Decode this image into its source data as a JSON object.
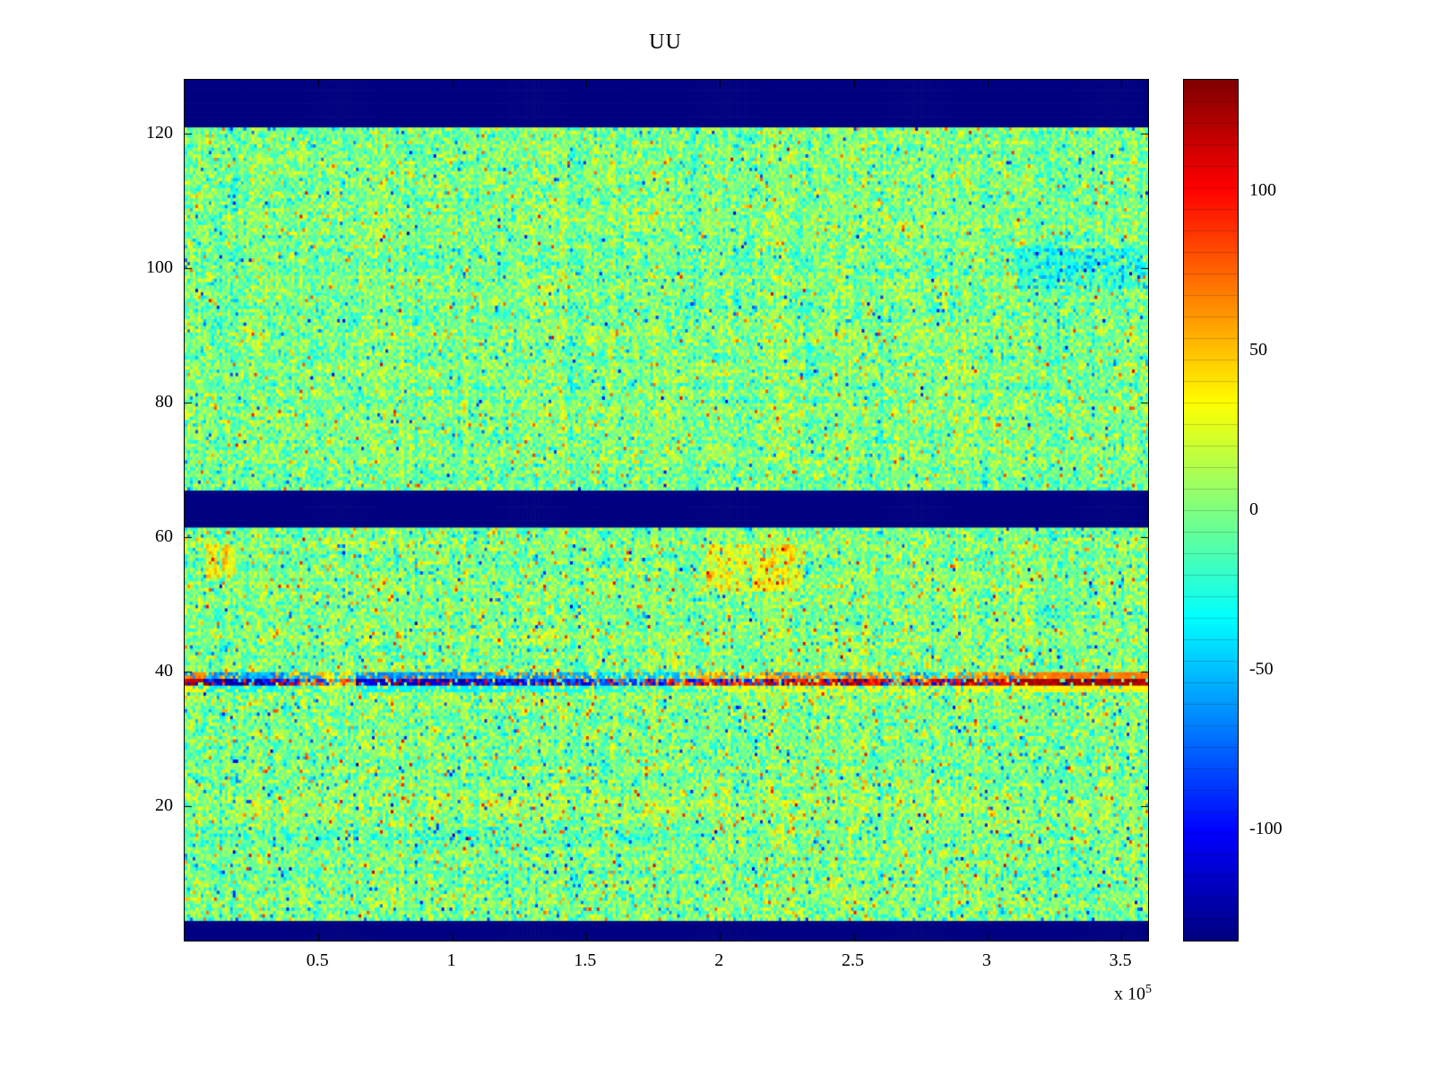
{
  "palette": {
    "background": "#ffffff",
    "axis": "#000000",
    "masked_color": "#000080"
  },
  "chart_data": {
    "type": "heatmap",
    "title": "UU",
    "x_label": "",
    "y_label": "",
    "x_range": [
      0,
      360000
    ],
    "x_tick_values": [
      50000,
      100000,
      150000,
      200000,
      250000,
      300000,
      350000
    ],
    "x_tick_labels": [
      "0.5",
      "1",
      "1.5",
      "2",
      "2.5",
      "3",
      "3.5"
    ],
    "x_offset_label": {
      "text": "x 10",
      "exponent": "5"
    },
    "y_range": [
      0,
      128
    ],
    "y_tick_values": [
      20,
      40,
      60,
      80,
      100,
      120
    ],
    "y_tick_labels": [
      "20",
      "40",
      "60",
      "80",
      "100",
      "120"
    ],
    "color_limits": [
      -135,
      135
    ],
    "colormap": "jet",
    "grid": false,
    "legend": null,
    "colorbar": {
      "tick_values": [
        100,
        50,
        0,
        -50,
        -100
      ],
      "tick_labels": [
        "100",
        "50",
        "0",
        "-50",
        "-100"
      ],
      "segments": 40
    },
    "matrix": {
      "n_rows": 128,
      "n_cols": 360,
      "masked_row_bands": [
        [
          121,
          128.2
        ],
        [
          61.5,
          67.2
        ],
        [
          0,
          3
        ]
      ],
      "masked_value": -135,
      "noise": {
        "seed": 1337,
        "std": 18,
        "row_offset_std": 3,
        "col_offset_std": 5,
        "outlier_prob": 0.04,
        "outlier_amp": [
          38,
          75
        ],
        "lower_region_rows": [
          0,
          61
        ],
        "lower_region_outlier_boost": 1.8
      },
      "stripe": {
        "rows": [
          {
            "row": 38,
            "weight": 1.0
          },
          {
            "row": 39,
            "weight": 0.55
          },
          {
            "row": 37,
            "weight": 0.3
          }
        ],
        "gap_prob": 0.1,
        "segments": [
          {
            "end": 0.02,
            "p_pos": 0.8,
            "amp": [
              100,
              135
            ]
          },
          {
            "end": 0.1,
            "p_pos": 0.25,
            "amp": [
              80,
              135
            ]
          },
          {
            "end": 0.145,
            "p_pos": 0.5,
            "amp": [
              60,
              120
            ]
          },
          {
            "end": 0.175,
            "p_pos": 0.75,
            "amp": [
              40,
              95
            ]
          },
          {
            "end": 0.3,
            "p_pos": 0.12,
            "amp": [
              90,
              135
            ]
          },
          {
            "end": 0.42,
            "p_pos": 0.2,
            "amp": [
              70,
              130
            ]
          },
          {
            "end": 0.53,
            "p_pos": 0.35,
            "amp": [
              50,
              110
            ]
          },
          {
            "end": 0.6,
            "p_pos": 0.7,
            "amp": [
              60,
              120
            ]
          },
          {
            "end": 0.72,
            "p_pos": 0.8,
            "amp": [
              80,
              135
            ]
          },
          {
            "end": 0.8,
            "p_pos": 0.6,
            "amp": [
              60,
              125
            ]
          },
          {
            "end": 0.87,
            "p_pos": 0.75,
            "amp": [
              80,
              135
            ]
          },
          {
            "end": 1.0,
            "p_pos": 0.95,
            "amp": [
              115,
              135
            ]
          }
        ]
      },
      "features": [
        {
          "name": "orange-patch",
          "rows": [
            52,
            58
          ],
          "x": [
            0.54,
            0.64
          ],
          "delta": 26
        },
        {
          "name": "orange-spot-left",
          "rows": [
            54,
            58
          ],
          "x": [
            0.02,
            0.05
          ],
          "delta": 32
        },
        {
          "name": "cyan-patch",
          "rows": [
            97,
            102
          ],
          "x": [
            0.86,
            1.0
          ],
          "delta": -20
        },
        {
          "name": "cyan-streak",
          "rows": [
            14,
            16
          ],
          "x": [
            0.0,
            0.5
          ],
          "delta": -9
        }
      ]
    }
  }
}
